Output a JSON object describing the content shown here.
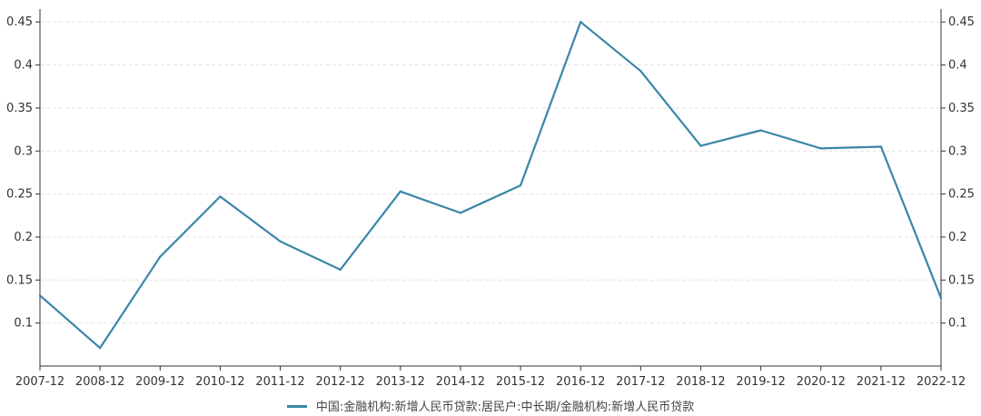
{
  "chart_data": {
    "type": "line",
    "x": [
      "2007-12",
      "2008-12",
      "2009-12",
      "2010-12",
      "2011-12",
      "2012-12",
      "2013-12",
      "2014-12",
      "2015-12",
      "2016-12",
      "2017-12",
      "2018-12",
      "2019-12",
      "2020-12",
      "2021-12",
      "2022-12"
    ],
    "series": [
      {
        "name": "中国:金融机构:新增人民币贷款:居民户:中长期/金融机构:新增人民币贷款",
        "values": [
          0.132,
          0.071,
          0.177,
          0.247,
          0.195,
          0.162,
          0.253,
          0.228,
          0.26,
          0.45,
          0.393,
          0.306,
          0.324,
          0.303,
          0.305,
          0.129
        ],
        "color": "#3a86a8"
      }
    ],
    "yticks": [
      "0.1",
      "0.15",
      "0.2",
      "0.25",
      "0.3",
      "0.35",
      "0.4",
      "0.45"
    ],
    "ylim": [
      0.05,
      0.465
    ],
    "grid": true,
    "axes": "left and right y-axes with identical scale",
    "legend_position": "bottom-center"
  }
}
